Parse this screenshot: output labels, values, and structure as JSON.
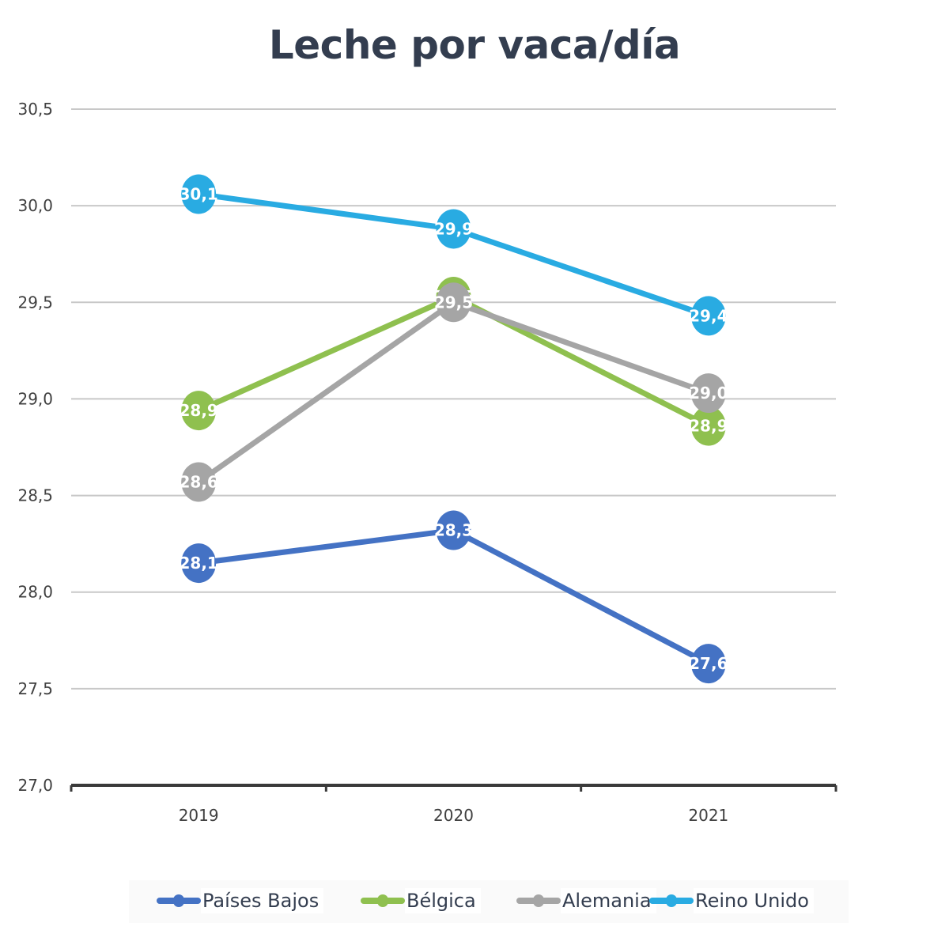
{
  "chart_data": {
    "type": "line",
    "title": "Leche por vaca/día",
    "xlabel": "",
    "ylabel": "",
    "categories": [
      "2019",
      "2020",
      "2021"
    ],
    "ylim": [
      27.0,
      30.5
    ],
    "yticks": [
      27.0,
      27.5,
      28.0,
      28.5,
      29.0,
      29.5,
      30.0,
      30.5
    ],
    "ytick_labels": [
      "27,0",
      "27,5",
      "28,0",
      "28,5",
      "29,0",
      "29,5",
      "30,0",
      "30,5"
    ],
    "grid": true,
    "legend_position": "bottom",
    "series": [
      {
        "name": "Países Bajos",
        "color": "#4472c4",
        "values": [
          28.15,
          28.32,
          27.63
        ],
        "labels": [
          "28,1",
          "28,3",
          "27,6"
        ]
      },
      {
        "name": "Bélgica",
        "color": "#8fc04f",
        "values": [
          28.94,
          29.53,
          28.86
        ],
        "labels": [
          "28,9",
          "29,5",
          "28,9"
        ]
      },
      {
        "name": "Alemania",
        "color": "#a5a5a5",
        "values": [
          28.57,
          29.5,
          29.03
        ],
        "labels": [
          "28,6",
          "29,5",
          "29,0"
        ]
      },
      {
        "name": "Reino Unido",
        "color": "#29abe2",
        "values": [
          30.06,
          29.88,
          29.43
        ],
        "labels": [
          "30,1",
          "29,9",
          "29,4"
        ]
      }
    ]
  }
}
